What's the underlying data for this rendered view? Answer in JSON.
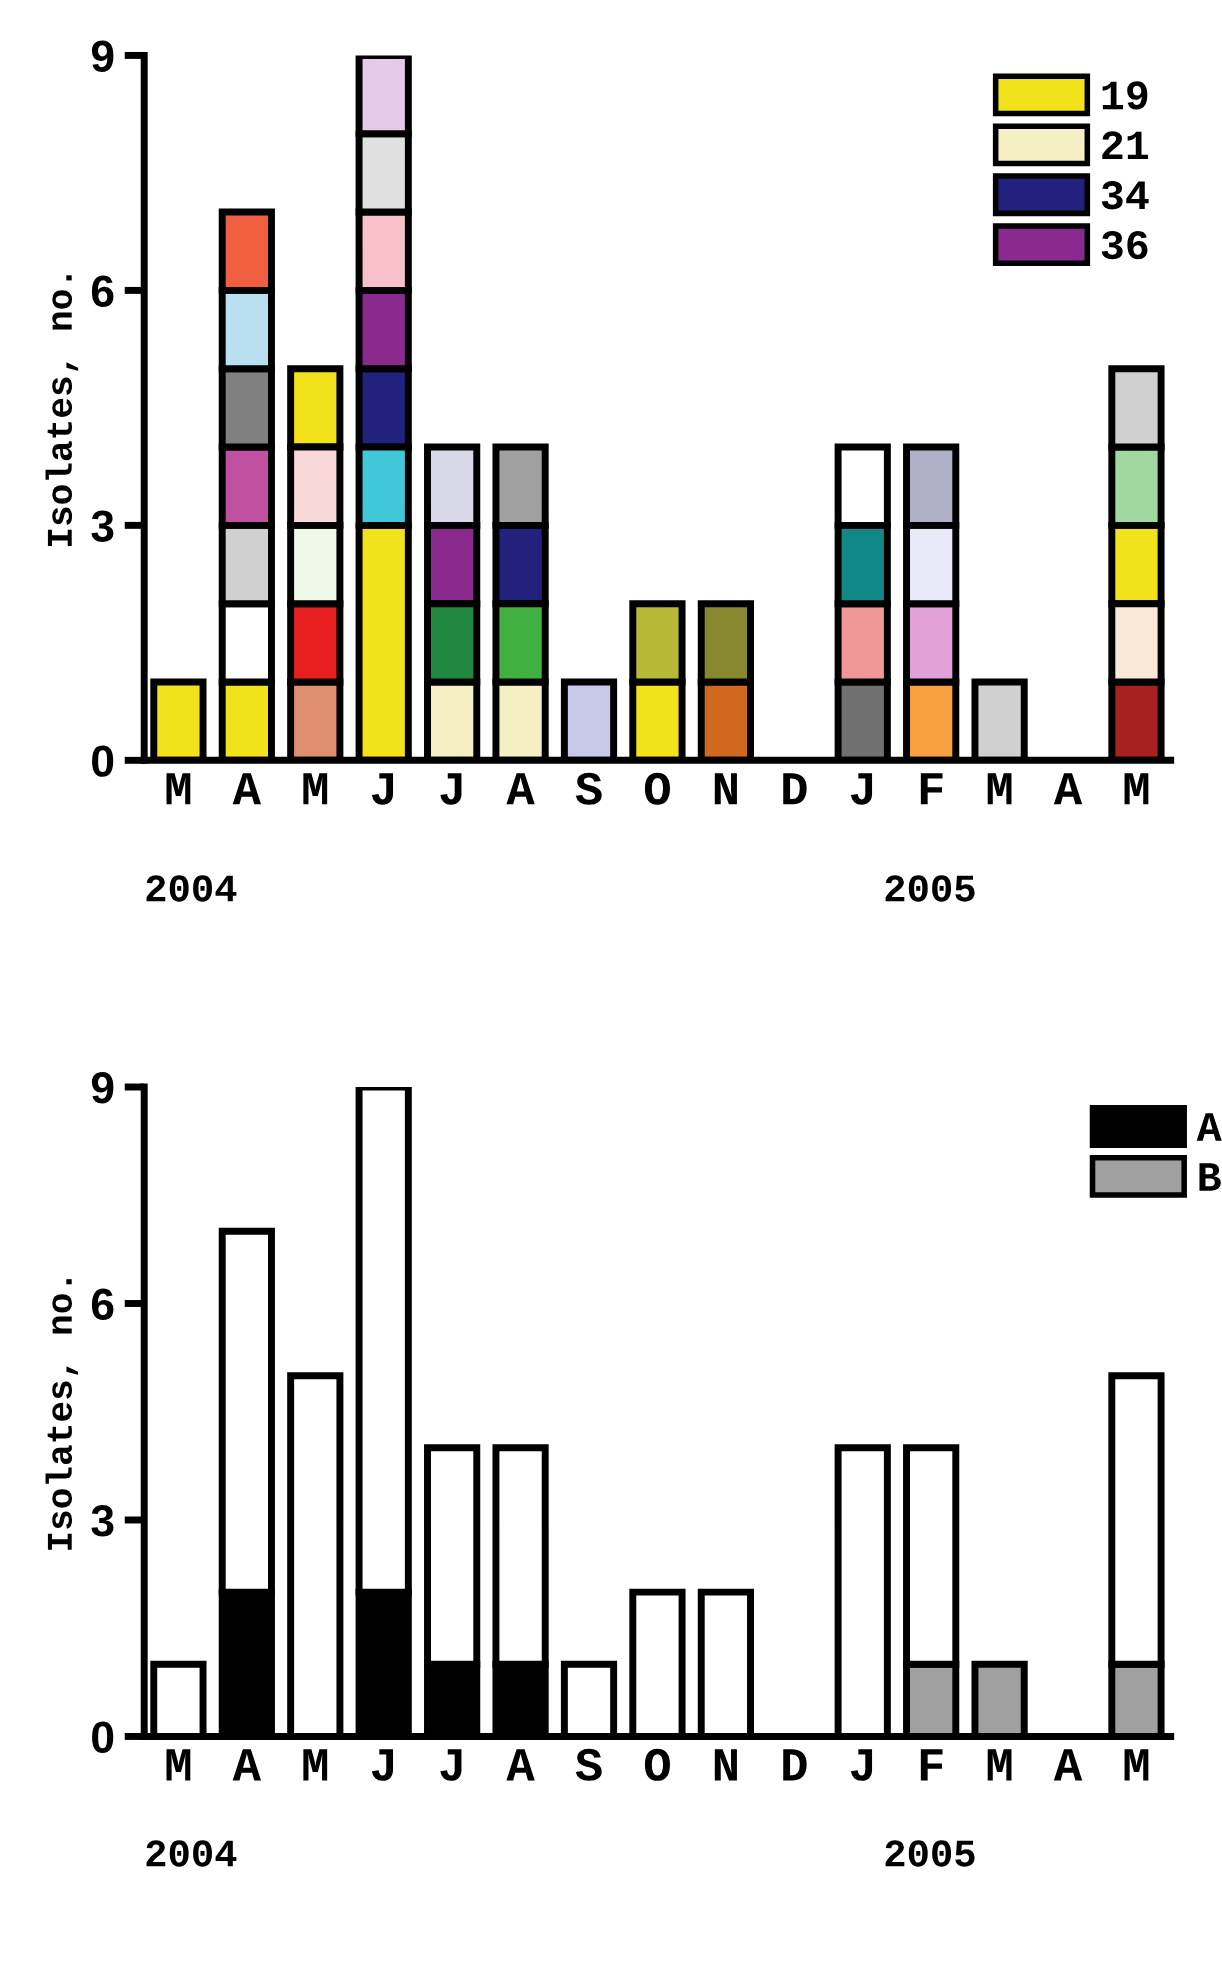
{
  "chart_data": [
    {
      "type": "bar",
      "ylabel": "Isolates, no.",
      "categories": [
        "M",
        "A",
        "M",
        "J",
        "J",
        "A",
        "S",
        "O",
        "N",
        "D",
        "J",
        "F",
        "M",
        "A",
        "M"
      ],
      "ylim": [
        0,
        9
      ],
      "yticks": [
        0,
        3,
        6,
        9
      ],
      "grid": false,
      "legend": "top right",
      "annotations": [
        "2004",
        "2005"
      ],
      "series": [
        {
          "name": "19",
          "color": "#f2e21c",
          "values": [
            1,
            1,
            1,
            3,
            null,
            null,
            null,
            1,
            null,
            null,
            null,
            null,
            null,
            null,
            1
          ],
          "base": [
            0,
            0,
            4,
            0,
            null,
            null,
            null,
            0,
            null,
            null,
            null,
            null,
            null,
            null,
            2
          ]
        },
        {
          "name": "21",
          "color": "#f4f0c4",
          "values": [
            null,
            null,
            null,
            null,
            1,
            1,
            null,
            null,
            null,
            null,
            null,
            null,
            null,
            null,
            null
          ],
          "base": [
            null,
            null,
            null,
            null,
            0,
            0,
            null,
            null,
            null,
            null,
            null,
            null,
            null,
            null,
            null
          ]
        },
        {
          "name": "34",
          "color": "#22227e",
          "values": [
            null,
            null,
            null,
            1,
            null,
            1,
            null,
            null,
            null,
            null,
            null,
            null,
            null,
            null,
            null
          ],
          "base": [
            null,
            null,
            null,
            4,
            null,
            2,
            null,
            null,
            null,
            null,
            null,
            null,
            null,
            null,
            null
          ]
        },
        {
          "name": "36",
          "color": "#8a2a8e",
          "values": [
            null,
            null,
            null,
            1,
            1,
            null,
            null,
            null,
            null,
            null,
            null,
            null,
            null,
            null,
            null
          ],
          "base": [
            null,
            null,
            null,
            5,
            2,
            null,
            null,
            null,
            null,
            null,
            null,
            null,
            null,
            null,
            null
          ]
        },
        {
          "colors": [
            null,
            "#ffffff",
            "#e09070",
            "#40c8d8",
            "#208840",
            "#40b040",
            "#c8c8e8",
            "#b8b838",
            "#d06820",
            null,
            "#707070",
            "#f8a040",
            "#d0d0d0",
            null,
            "#a82020"
          ],
          "values": [
            null,
            1,
            1,
            1,
            1,
            1,
            1,
            1,
            1,
            null,
            1,
            1,
            1,
            null,
            1
          ],
          "base": [
            null,
            1,
            0,
            3,
            1,
            1,
            0,
            1,
            0,
            null,
            0,
            0,
            0,
            null,
            0
          ]
        },
        {
          "colors": [
            null,
            "#d0d0d0",
            "#e82020",
            "#f8c0c8",
            "#d8d8e8",
            "#a0a0a0",
            null,
            null,
            "#888830",
            null,
            "#f09898",
            "#e0a0d8",
            null,
            null,
            "#f8e8d8"
          ],
          "values": [
            null,
            1,
            1,
            1,
            1,
            1,
            null,
            null,
            1,
            null,
            1,
            1,
            null,
            null,
            1
          ],
          "base": [
            null,
            2,
            1,
            6,
            3,
            3,
            null,
            null,
            1,
            null,
            1,
            1,
            null,
            null,
            1
          ]
        },
        {
          "colors": [
            null,
            "#c050a0",
            "#f0f8e8",
            "#e0e0e0",
            null,
            null,
            null,
            null,
            null,
            null,
            "#108888",
            "#e8e8f8",
            null,
            null,
            "#a0d8a0"
          ],
          "values": [
            null,
            1,
            1,
            1,
            null,
            null,
            null,
            null,
            null,
            null,
            1,
            1,
            null,
            null,
            1
          ],
          "base": [
            null,
            3,
            2,
            7,
            null,
            null,
            null,
            null,
            null,
            null,
            2,
            2,
            null,
            null,
            3
          ]
        },
        {
          "colors": [
            null,
            "#808080",
            "#f8d8d8",
            "#e8c8e8",
            null,
            null,
            null,
            null,
            null,
            null,
            "#ffffff",
            "#b0b0c8",
            null,
            null,
            "#d0d0d0"
          ],
          "values": [
            null,
            1,
            1,
            1,
            null,
            null,
            null,
            null,
            null,
            null,
            1,
            1,
            null,
            null,
            1
          ],
          "base": [
            null,
            4,
            3,
            8,
            null,
            null,
            null,
            null,
            null,
            null,
            3,
            3,
            null,
            null,
            4
          ]
        },
        {
          "colors": [
            null,
            "#b8e0f0",
            null,
            null,
            null,
            null,
            null,
            null,
            null,
            null,
            null,
            null,
            null,
            null,
            null
          ],
          "values": [
            null,
            1,
            null,
            null,
            null,
            null,
            null,
            null,
            null,
            null,
            null,
            null,
            null,
            null,
            null
          ],
          "base": [
            null,
            5,
            null,
            null,
            null,
            null,
            null,
            null,
            null,
            null,
            null,
            null,
            null,
            null,
            null
          ]
        },
        {
          "colors": [
            null,
            "#f06040",
            null,
            null,
            null,
            null,
            null,
            null,
            null,
            null,
            null,
            null,
            null,
            null,
            null
          ],
          "values": [
            null,
            1,
            null,
            null,
            null,
            null,
            null,
            null,
            null,
            null,
            null,
            null,
            null,
            null,
            null
          ],
          "base": [
            null,
            6,
            null,
            null,
            null,
            null,
            null,
            null,
            null,
            null,
            null,
            null,
            null,
            null,
            null
          ]
        }
      ]
    },
    {
      "type": "bar",
      "stacked": true,
      "ylabel": "Isolates, no.",
      "categories": [
        "M",
        "A",
        "M",
        "J",
        "J",
        "A",
        "S",
        "O",
        "N",
        "D",
        "J",
        "F",
        "M",
        "A",
        "M"
      ],
      "ylim": [
        0,
        9
      ],
      "yticks": [
        0,
        3,
        6,
        9
      ],
      "grid": false,
      "legend": "top right",
      "annotations": [
        "2004",
        "2005"
      ],
      "series": [
        {
          "name": "A",
          "color": "#000000",
          "values": [
            null,
            2,
            null,
            2,
            1,
            1,
            null,
            null,
            null,
            null,
            null,
            null,
            null,
            null,
            null
          ]
        },
        {
          "name": "B",
          "color": "#a0a0a0",
          "values": [
            null,
            null,
            null,
            null,
            null,
            null,
            null,
            null,
            null,
            null,
            null,
            1,
            1,
            null,
            1
          ]
        },
        {
          "color": "#ffffff",
          "values": [
            1,
            5,
            5,
            7,
            3,
            3,
            1,
            2,
            2,
            null,
            4,
            3,
            null,
            null,
            4
          ]
        }
      ]
    }
  ]
}
